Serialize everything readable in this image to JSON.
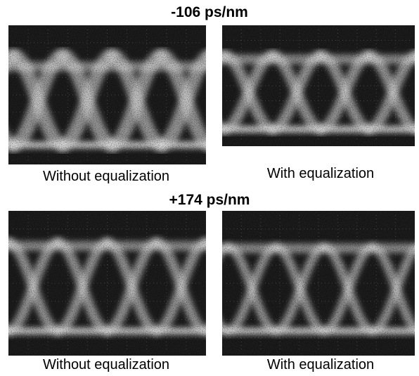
{
  "sections": [
    {
      "title": "-106 ps/nm",
      "panels": [
        {
          "caption": "Without equalization"
        },
        {
          "caption": "With equalization"
        }
      ]
    },
    {
      "title": "+174 ps/nm",
      "panels": [
        {
          "caption": "Without equalization"
        },
        {
          "caption": "With equalization"
        }
      ]
    }
  ]
}
